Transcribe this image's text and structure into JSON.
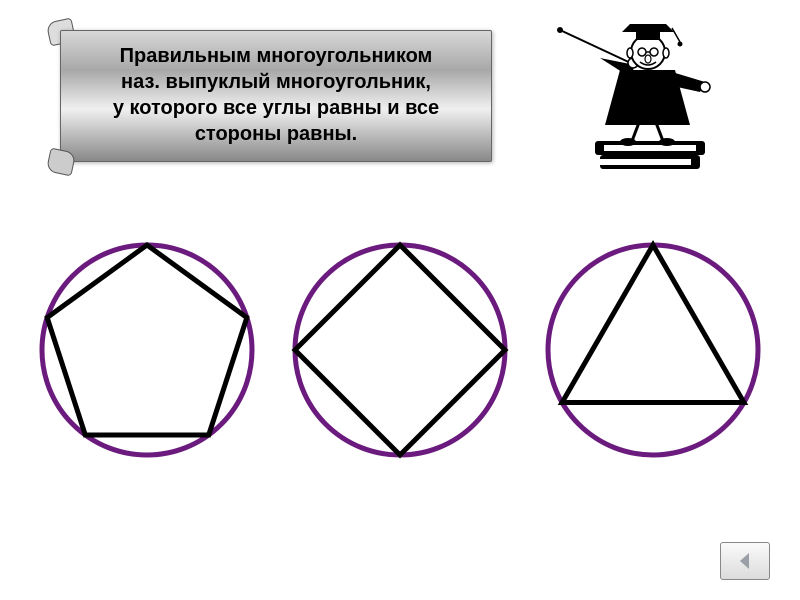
{
  "banner": {
    "line1": "Правильным многоугольником",
    "line2": "наз. выпуклый многоугольник,",
    "line3": "у которого все углы равны и все",
    "line4": "стороны равны.",
    "fontsize": 20,
    "font_weight": "bold",
    "text_color": "#000000",
    "gradient_top": "#d8d8d8",
    "gradient_bottom": "#888888"
  },
  "shapes": {
    "circle_color": "#6b1a7e",
    "circle_stroke_width": 5,
    "polygon_color": "#000000",
    "polygon_stroke_width": 5,
    "background": "#ffffff",
    "items": [
      {
        "type": "pentagon",
        "sides": 5,
        "start_angle_deg": -90
      },
      {
        "type": "square",
        "sides": 4,
        "start_angle_deg": -90
      },
      {
        "type": "triangle",
        "sides": 3,
        "start_angle_deg": -90
      }
    ]
  },
  "nav": {
    "back_icon_color": "#9aa0a6"
  },
  "professor": {
    "stroke": "#000000",
    "robe_fill": "#000000",
    "book_fill": "#000000",
    "skin_fill": "#ffffff"
  }
}
